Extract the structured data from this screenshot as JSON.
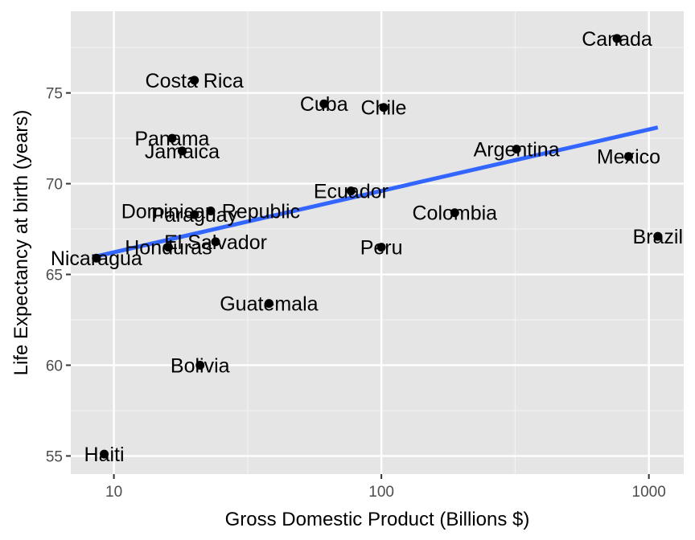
{
  "chart_data": {
    "type": "scatter",
    "xlabel": "Gross Domestic Product (Billions $)",
    "ylabel": "Life Expectancy at birth (years)",
    "x_scale": "log10",
    "xlim": [
      6.9,
      1350
    ],
    "ylim": [
      54,
      79.5
    ],
    "x_ticks": [
      10,
      100,
      1000
    ],
    "x_tick_labels": [
      "10",
      "100",
      "1000"
    ],
    "y_ticks": [
      55,
      60,
      65,
      70,
      75
    ],
    "y_tick_labels": [
      "55",
      "60",
      "65",
      "70",
      "75"
    ],
    "grid": true,
    "background": "#e5e5e5",
    "trend_color": "#3366ff",
    "point_color": "#000000",
    "points": [
      {
        "label": "Canada",
        "x": 760,
        "y": 78.0
      },
      {
        "label": "Costa Rica",
        "x": 20,
        "y": 75.7
      },
      {
        "label": "Cuba",
        "x": 61,
        "y": 74.4
      },
      {
        "label": "Chile",
        "x": 102,
        "y": 74.2
      },
      {
        "label": "Panama",
        "x": 16.5,
        "y": 72.5
      },
      {
        "label": "Jamaica",
        "x": 18,
        "y": 71.8
      },
      {
        "label": "Argentina",
        "x": 320,
        "y": 71.9
      },
      {
        "label": "Mexico",
        "x": 840,
        "y": 71.5
      },
      {
        "label": "Ecuador",
        "x": 77,
        "y": 69.6
      },
      {
        "label": "Dominican Republic",
        "x": 23,
        "y": 68.5
      },
      {
        "label": "Paraguay",
        "x": 20,
        "y": 68.3
      },
      {
        "label": "Colombia",
        "x": 188,
        "y": 68.4
      },
      {
        "label": "El Salvador",
        "x": 24,
        "y": 66.8
      },
      {
        "label": "Honduras",
        "x": 16,
        "y": 66.5
      },
      {
        "label": "Nicaragua",
        "x": 8.6,
        "y": 65.9
      },
      {
        "label": "Peru",
        "x": 100,
        "y": 66.5
      },
      {
        "label": "Brazil",
        "x": 1080,
        "y": 67.1
      },
      {
        "label": "Guatemala",
        "x": 38,
        "y": 63.4
      },
      {
        "label": "Bolivia",
        "x": 21,
        "y": 60.0
      },
      {
        "label": "Haiti",
        "x": 9.2,
        "y": 55.1
      }
    ],
    "trend_line": {
      "x": [
        8.6,
        1080
      ],
      "y": [
        66.0,
        73.1
      ]
    }
  }
}
